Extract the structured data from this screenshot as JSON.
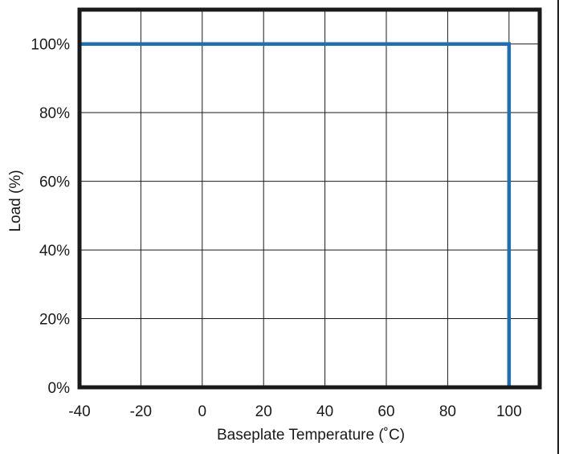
{
  "chart_data": {
    "type": "line",
    "xlabel": "Baseplate Temperature (˚C)",
    "ylabel": "Load (%)",
    "xlim": [
      -40,
      110
    ],
    "ylim": [
      0,
      110
    ],
    "x_ticks": [
      "-40",
      "-20",
      "0",
      "20",
      "40",
      "60",
      "80",
      "100"
    ],
    "x_tick_values": [
      -40,
      -20,
      0,
      20,
      40,
      60,
      80,
      100
    ],
    "y_ticks": [
      "0%",
      "20%",
      "40%",
      "60%",
      "80%",
      "100%"
    ],
    "y_tick_values": [
      0,
      20,
      40,
      60,
      80,
      100
    ],
    "grid": true,
    "series": [
      {
        "color": "#1f6fb5",
        "x": [
          -40,
          100,
          100
        ],
        "y": [
          100,
          100,
          0
        ]
      }
    ]
  }
}
